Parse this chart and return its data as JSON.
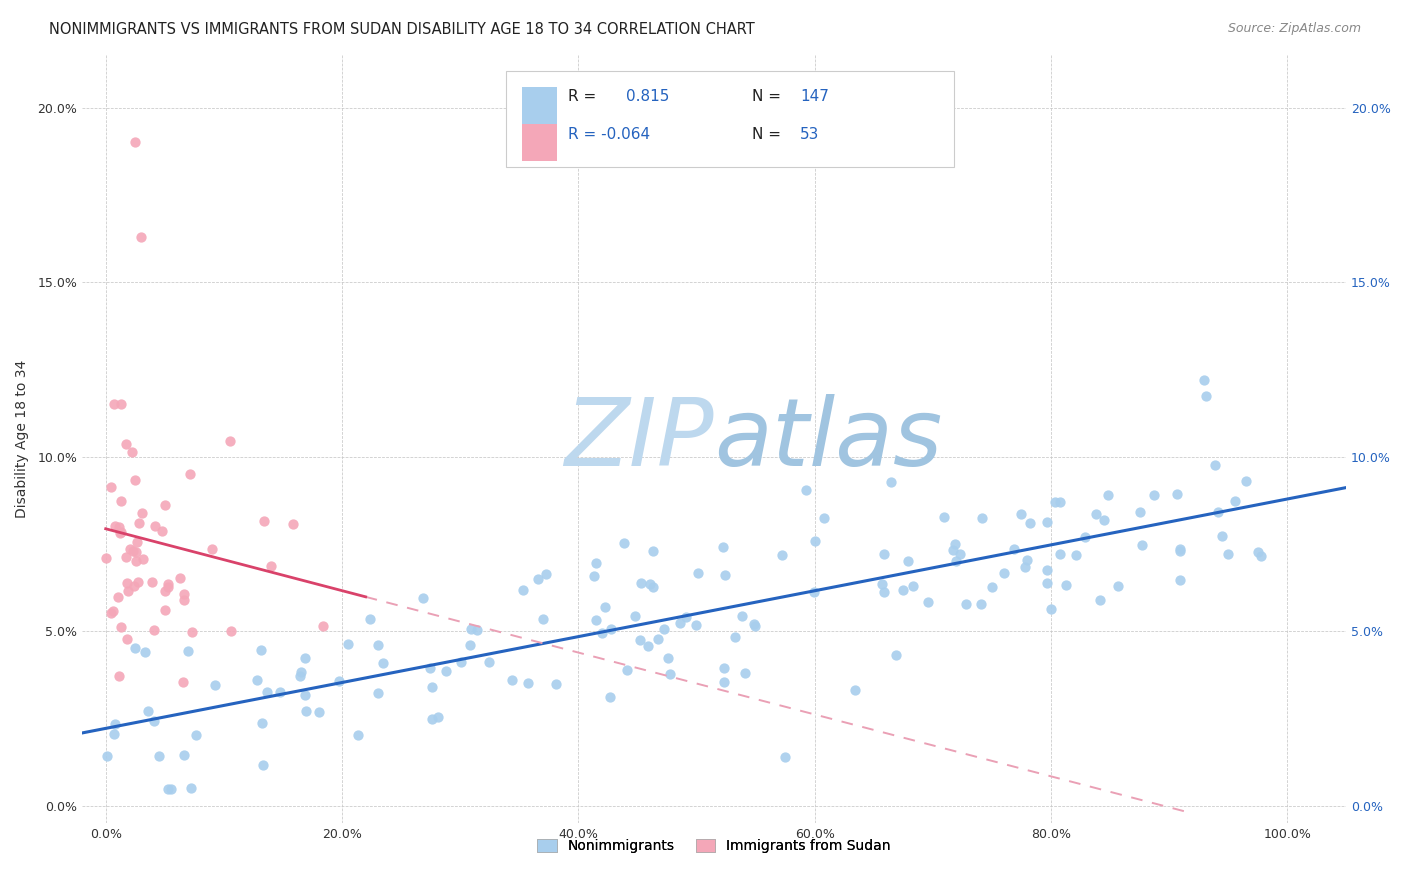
{
  "title": "NONIMMIGRANTS VS IMMIGRANTS FROM SUDAN DISABILITY AGE 18 TO 34 CORRELATION CHART",
  "source": "Source: ZipAtlas.com",
  "xlabel_ticks": [
    "0.0%",
    "20.0%",
    "40.0%",
    "60.0%",
    "80.0%",
    "100.0%"
  ],
  "ylabel_ticks": [
    "0.0%",
    "5.0%",
    "10.0%",
    "15.0%",
    "20.0%"
  ],
  "xlim": [
    -0.02,
    1.05
  ],
  "ylim": [
    -0.005,
    0.215
  ],
  "legend_labels": [
    "Nonimmigrants",
    "Immigrants from Sudan"
  ],
  "R_nonimm": 0.815,
  "N_nonimm": 147,
  "R_imm": -0.064,
  "N_imm": 53,
  "color_nonimm_scatter": "#A8CEED",
  "color_nonimm_line": "#2563BF",
  "color_imm_scatter": "#F4A7B8",
  "color_imm_line": "#D9426A",
  "color_imm_dashed": "#EAA0B5",
  "watermark_text": "ZIPatlas",
  "watermark_color": "#C8DDEF",
  "background_color": "#FFFFFF",
  "title_fontsize": 10.5,
  "source_fontsize": 9,
  "axis_label_fontsize": 10,
  "tick_fontsize": 9,
  "legend_fontsize": 11
}
